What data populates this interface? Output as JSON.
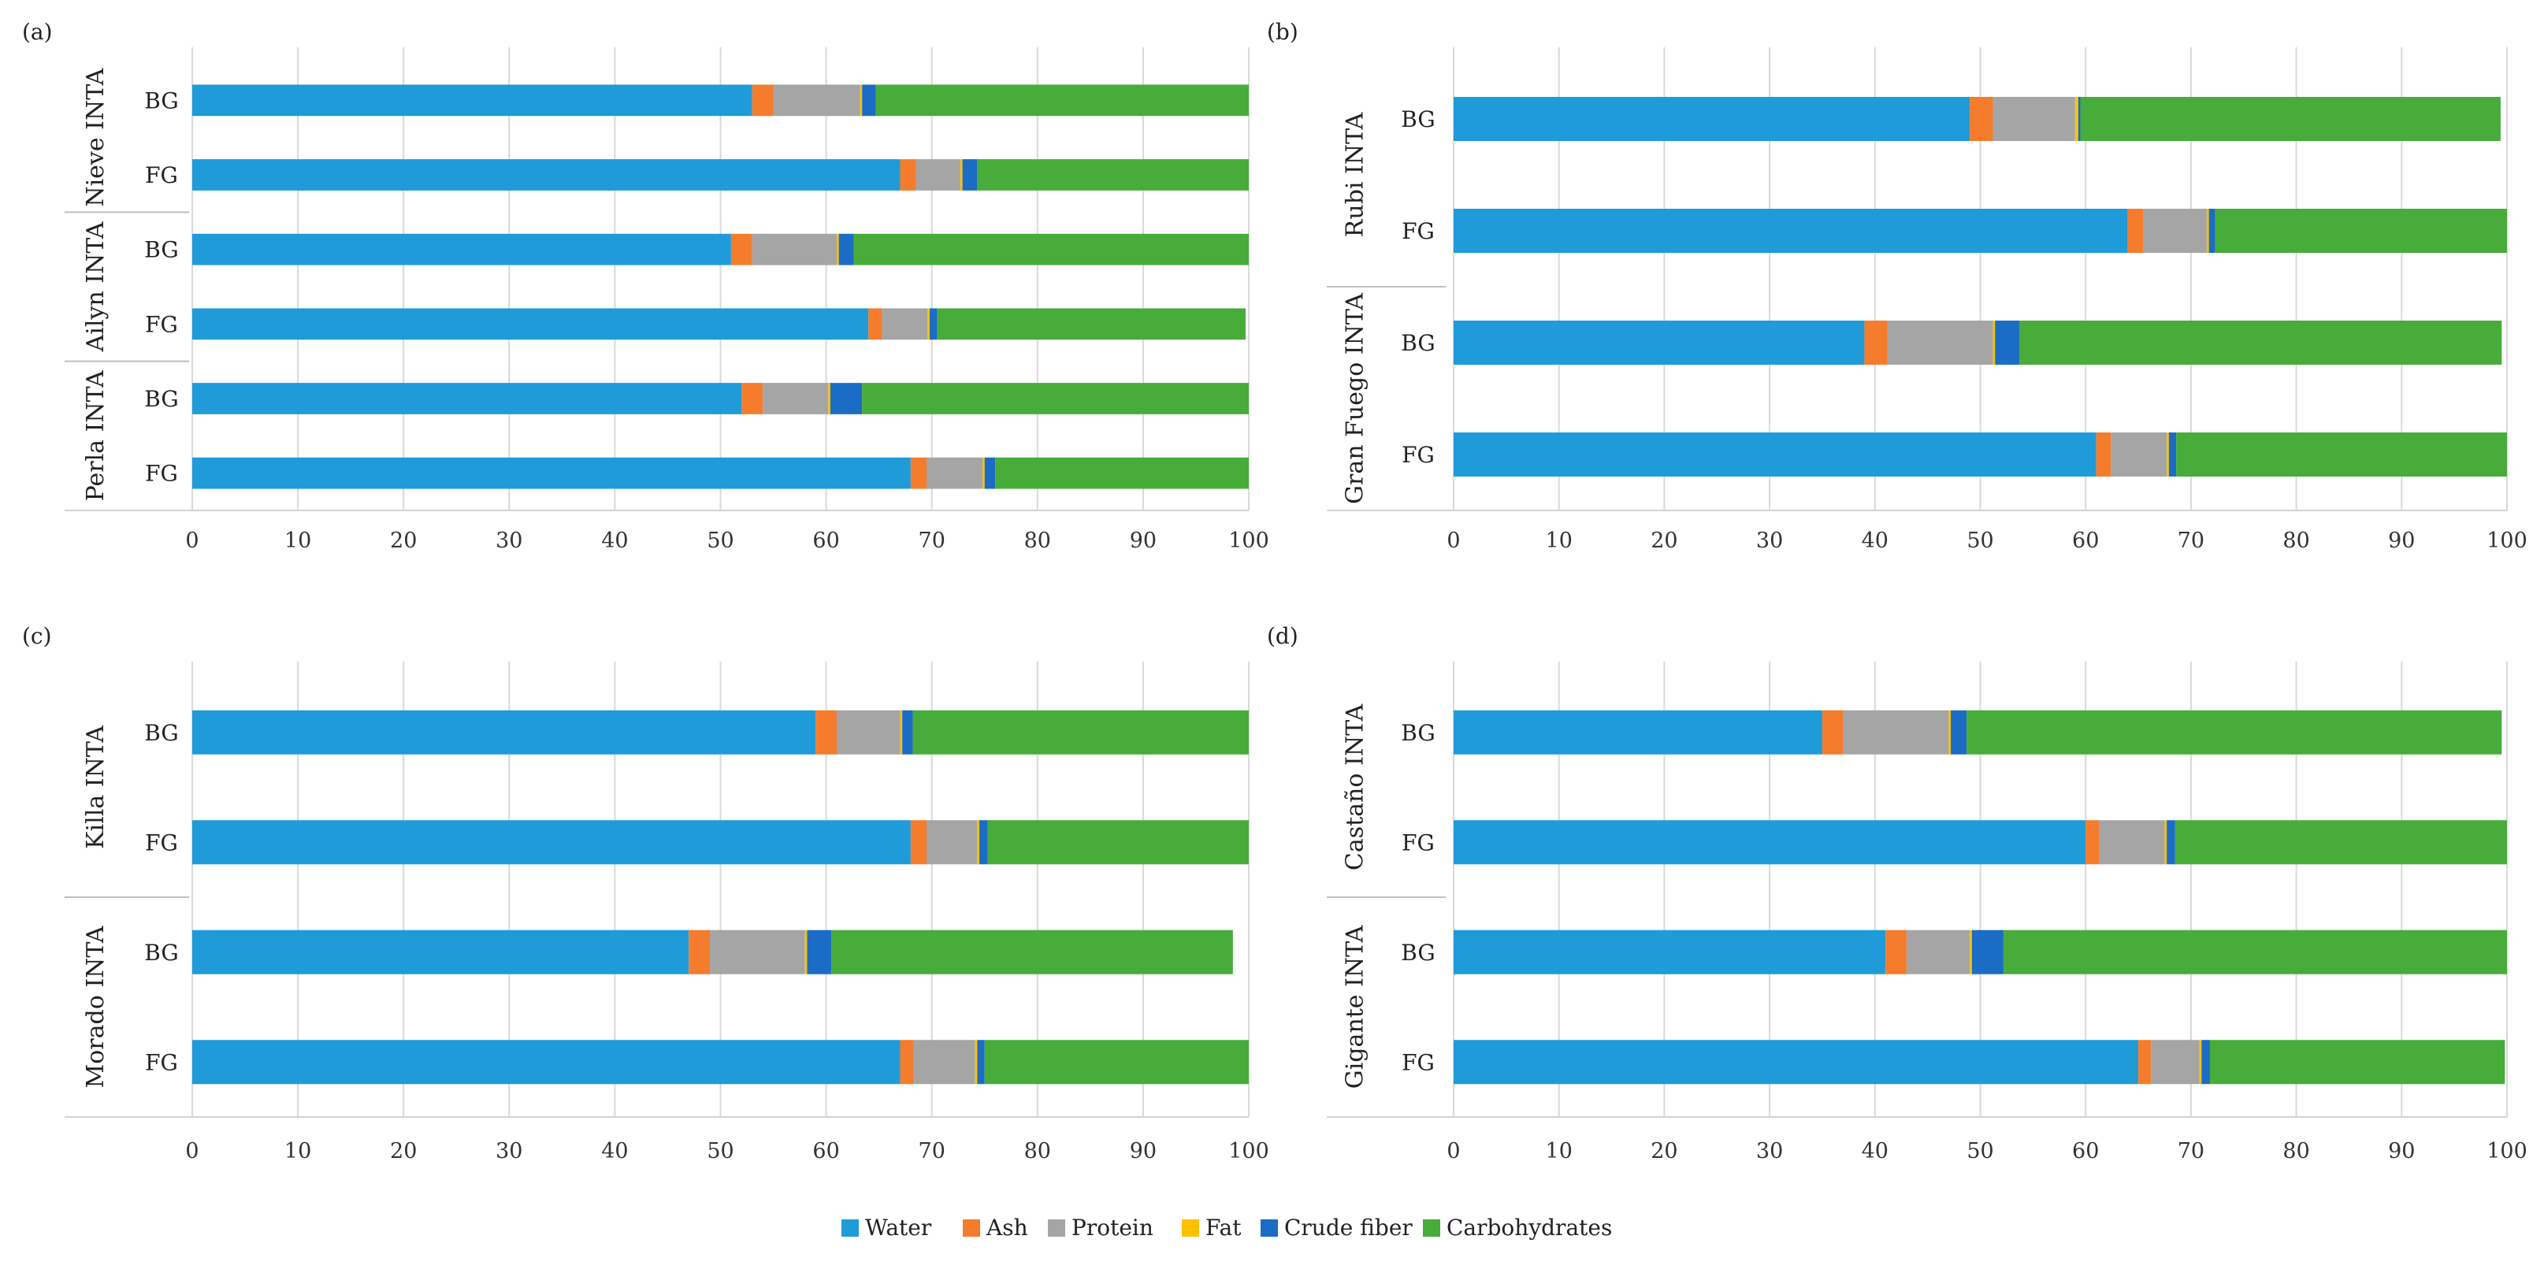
{
  "colors": {
    "Water": "#1f9bd9",
    "Ash": "#f47c2c",
    "Protein": "#a5a5a5",
    "Fat": "#ffc000",
    "Crude fiber": "#1b6cc4",
    "Carbohydrates": "#47ac3a"
  },
  "legend": [
    "Water",
    "Ash",
    "Protein",
    "Fat",
    "Crude fiber",
    "Carbohydrates"
  ],
  "chart_data": [
    {
      "type": "bar",
      "orientation": "horizontal",
      "stacked": true,
      "panel": "(a)",
      "xlim": [
        0,
        100
      ],
      "xticks": [
        0,
        10,
        20,
        30,
        40,
        50,
        60,
        70,
        80,
        90,
        100
      ],
      "groups": [
        {
          "name": "Nieve INTA",
          "bars": [
            {
              "label": "BG",
              "values": [
                53,
                2,
                8.2,
                0.2,
                1.3,
                35.3
              ]
            },
            {
              "label": "FG",
              "values": [
                67,
                1.5,
                4.2,
                0.2,
                1.4,
                25.7
              ]
            }
          ]
        },
        {
          "name": "Ailyn INTA",
          "bars": [
            {
              "label": "BG",
              "values": [
                51,
                2,
                8,
                0.2,
                1.4,
                37.4
              ]
            },
            {
              "label": "FG",
              "values": [
                64,
                1.3,
                4.3,
                0.2,
                0.7,
                29.2
              ]
            }
          ]
        },
        {
          "name": "Perla INTA",
          "bars": [
            {
              "label": "BG",
              "values": [
                52,
                2,
                6.2,
                0.2,
                3,
                36.6
              ]
            },
            {
              "label": "FG",
              "values": [
                68,
                1.5,
                5.3,
                0.2,
                1,
                24
              ]
            }
          ]
        }
      ]
    },
    {
      "type": "bar",
      "orientation": "horizontal",
      "stacked": true,
      "panel": "(b)",
      "xlim": [
        0,
        100
      ],
      "xticks": [
        0,
        10,
        20,
        30,
        40,
        50,
        60,
        70,
        80,
        90,
        100
      ],
      "groups": [
        {
          "name": "Rubi INTA",
          "bars": [
            {
              "label": "BG",
              "values": [
                49,
                2.2,
                7.8,
                0.3,
                0.2,
                39.9
              ]
            },
            {
              "label": "FG",
              "values": [
                64,
                1.5,
                6,
                0.2,
                0.6,
                27.7
              ]
            }
          ]
        },
        {
          "name": "Gran Fuego INTA",
          "bars": [
            {
              "label": "BG",
              "values": [
                39,
                2.2,
                10,
                0.2,
                2.3,
                45.8
              ]
            },
            {
              "label": "FG",
              "values": [
                61,
                1.4,
                5.3,
                0.2,
                0.7,
                31.4
              ]
            }
          ]
        }
      ]
    },
    {
      "type": "bar",
      "orientation": "horizontal",
      "stacked": true,
      "panel": "(c)",
      "xlim": [
        0,
        100
      ],
      "xticks": [
        0,
        10,
        20,
        30,
        40,
        50,
        60,
        70,
        80,
        90,
        100
      ],
      "groups": [
        {
          "name": "Killa INTA",
          "bars": [
            {
              "label": "BG",
              "values": [
                59,
                2,
                6,
                0.2,
                1,
                31.8
              ]
            },
            {
              "label": "FG",
              "values": [
                68,
                1.5,
                4.8,
                0.2,
                0.8,
                24.7
              ]
            }
          ]
        },
        {
          "name": "Morado INTA",
          "bars": [
            {
              "label": "BG",
              "values": [
                47,
                2,
                9,
                0.2,
                2.3,
                38
              ]
            },
            {
              "label": "FG",
              "values": [
                67,
                1.3,
                5.8,
                0.2,
                0.7,
                25
              ]
            }
          ]
        }
      ]
    },
    {
      "type": "bar",
      "orientation": "horizontal",
      "stacked": true,
      "panel": "(d)",
      "xlim": [
        0,
        100
      ],
      "xticks": [
        0,
        10,
        20,
        30,
        40,
        50,
        60,
        70,
        80,
        90,
        100
      ],
      "groups": [
        {
          "name": "Castaño INTA",
          "bars": [
            {
              "label": "BG",
              "values": [
                35,
                2,
                10,
                0.2,
                1.5,
                50.8
              ]
            },
            {
              "label": "FG",
              "values": [
                60,
                1.3,
                6.2,
                0.2,
                0.8,
                31.5
              ]
            }
          ]
        },
        {
          "name": "Gigante INTA",
          "bars": [
            {
              "label": "BG",
              "values": [
                41,
                2,
                6,
                0.2,
                3,
                47.8
              ]
            },
            {
              "label": "FG",
              "values": [
                65,
                1.2,
                4.6,
                0.2,
                0.8,
                28
              ]
            }
          ]
        }
      ]
    }
  ]
}
